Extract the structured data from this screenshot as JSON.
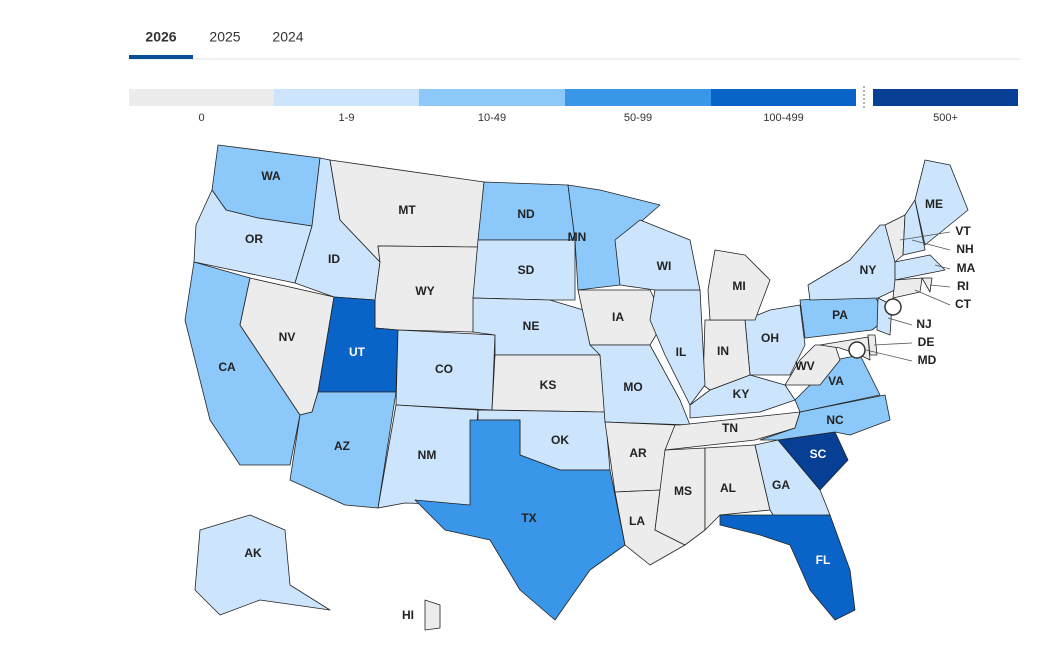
{
  "tabs": {
    "items": [
      "2026",
      "2025",
      "2024"
    ],
    "active": 0
  },
  "legend": {
    "bins": [
      {
        "label": "0",
        "color": "#ececec"
      },
      {
        "label": "1-9",
        "color": "#cce5fd"
      },
      {
        "label": "10-49",
        "color": "#8cc9fa"
      },
      {
        "label": "50-99",
        "color": "#3a96e8"
      },
      {
        "label": "100-499",
        "color": "#0a64c8"
      },
      {
        "label": "500+",
        "color": "#063f94"
      }
    ]
  },
  "map": {
    "states": [
      {
        "label": "WA",
        "level": 2
      },
      {
        "label": "OR",
        "level": 1
      },
      {
        "label": "CA",
        "level": 2
      },
      {
        "label": "NV",
        "level": 0
      },
      {
        "label": "ID",
        "level": 1
      },
      {
        "label": "MT",
        "level": 0
      },
      {
        "label": "WY",
        "level": 0
      },
      {
        "label": "UT",
        "level": 4
      },
      {
        "label": "AZ",
        "level": 2
      },
      {
        "label": "CO",
        "level": 1
      },
      {
        "label": "NM",
        "level": 1
      },
      {
        "label": "ND",
        "level": 2
      },
      {
        "label": "SD",
        "level": 1
      },
      {
        "label": "NE",
        "level": 1
      },
      {
        "label": "KS",
        "level": 0
      },
      {
        "label": "OK",
        "level": 1
      },
      {
        "label": "TX",
        "level": 3
      },
      {
        "label": "MN",
        "level": 2
      },
      {
        "label": "IA",
        "level": 0
      },
      {
        "label": "MO",
        "level": 1
      },
      {
        "label": "AR",
        "level": 0
      },
      {
        "label": "LA",
        "level": 0
      },
      {
        "label": "MS",
        "level": 0
      },
      {
        "label": "AL",
        "level": 0
      },
      {
        "label": "TN",
        "level": 0
      },
      {
        "label": "KY",
        "level": 1
      },
      {
        "label": "GA",
        "level": 1
      },
      {
        "label": "FL",
        "level": 4
      },
      {
        "label": "SC",
        "level": 5
      },
      {
        "label": "NC",
        "level": 2
      },
      {
        "label": "VA",
        "level": 2
      },
      {
        "label": "WV",
        "level": 0
      },
      {
        "label": "OH",
        "level": 1
      },
      {
        "label": "IN",
        "level": 0
      },
      {
        "label": "IL",
        "level": 1
      },
      {
        "label": "WI",
        "level": 1
      },
      {
        "label": "MI",
        "level": 0
      },
      {
        "label": "PA",
        "level": 2
      },
      {
        "label": "NY",
        "level": 1
      },
      {
        "label": "VT",
        "level": 0
      },
      {
        "label": "NH",
        "level": 1
      },
      {
        "label": "ME",
        "level": 1
      },
      {
        "label": "MA",
        "level": 1
      },
      {
        "label": "RI",
        "level": 0
      },
      {
        "label": "CT",
        "level": 0
      },
      {
        "label": "NJ",
        "level": 1
      },
      {
        "label": "DE",
        "level": 0
      },
      {
        "label": "MD",
        "level": 0
      },
      {
        "label": "AK",
        "level": 1
      },
      {
        "label": "HI",
        "level": 0
      }
    ]
  }
}
